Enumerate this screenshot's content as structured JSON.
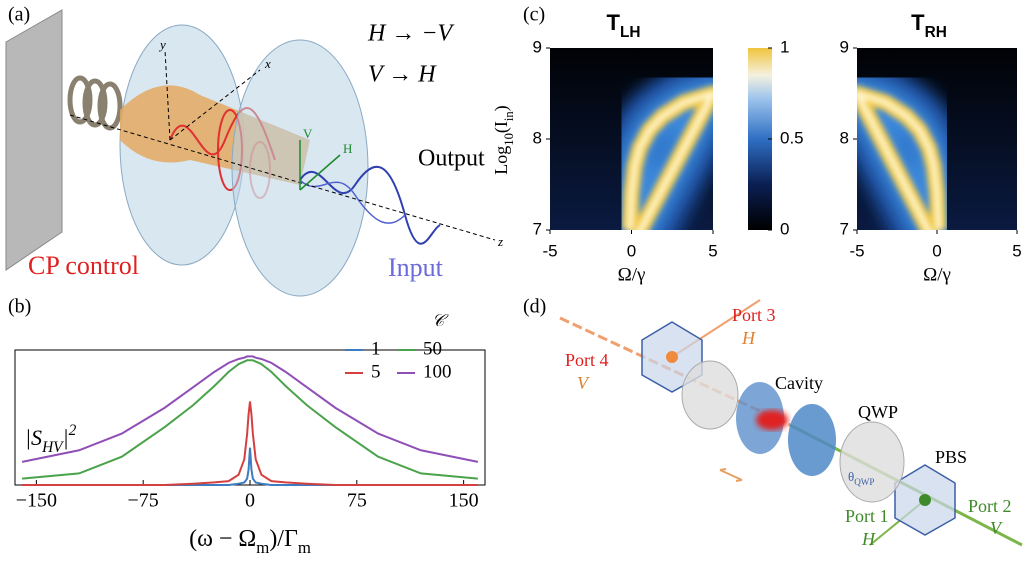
{
  "panel_a": {
    "label": "(a)",
    "rule_1": "H → −V",
    "rule_2": "V → H",
    "output": "Output",
    "control": "CP control",
    "input": "Input",
    "axes": {
      "x": "x",
      "y": "y",
      "z": "z",
      "V": "V",
      "H": "H"
    }
  },
  "panel_b": {
    "label": "(b)"
  },
  "panel_c": {
    "label": "(c)"
  },
  "panel_d": {
    "label": "(d)",
    "port_3": "Port 3",
    "port_3_pol": "H",
    "port_4": "Port 4",
    "port_4_pol": "V",
    "cavity": "Cavity",
    "qwp": "QWP",
    "theta": [
      {
        "text": "θ"
      },
      {
        "text": "QWP",
        "sub": true
      }
    ],
    "pbs": "PBS",
    "port_1": "Port 1",
    "port_1_pol": "H",
    "port_2": "Port 2",
    "port_2_pol": "V"
  },
  "chart_data": [
    {
      "type": "line",
      "xlabel": [
        {
          "text": "(ω − Ω"
        },
        {
          "text": "m",
          "sub": true
        },
        {
          "text": ")/Γ"
        },
        {
          "text": "m",
          "sub": true
        }
      ],
      "ylabel": [
        {
          "text": "|S"
        },
        {
          "text": "HV",
          "sub": true
        },
        {
          "text": "|"
        },
        {
          "text": "2",
          "sup": true
        }
      ],
      "legend_title": "𝒞",
      "x": [
        -160,
        -120,
        -90,
        -60,
        -40,
        -25,
        -15,
        -8,
        -4,
        -2,
        -1,
        0,
        1,
        2,
        4,
        8,
        15,
        25,
        40,
        60,
        90,
        120,
        160
      ],
      "series": [
        {
          "name": "1",
          "color": "#3d7cc0",
          "values": [
            0,
            0,
            0,
            0,
            0,
            0,
            0,
            0.01,
            0.02,
            0.05,
            0.12,
            0.29,
            0.12,
            0.05,
            0.02,
            0.01,
            0,
            0,
            0,
            0,
            0,
            0,
            0
          ]
        },
        {
          "name": "50",
          "color": "#4aa34a",
          "values": [
            0.05,
            0.09,
            0.22,
            0.45,
            0.62,
            0.77,
            0.88,
            0.94,
            0.96,
            0.97,
            0.97,
            0.97,
            0.97,
            0.97,
            0.96,
            0.94,
            0.88,
            0.77,
            0.62,
            0.45,
            0.22,
            0.09,
            0.05
          ]
        },
        {
          "name": "5",
          "color": "#d44040",
          "values": [
            0,
            0,
            0,
            0,
            0.01,
            0.02,
            0.03,
            0.08,
            0.2,
            0.4,
            0.55,
            0.65,
            0.55,
            0.4,
            0.2,
            0.08,
            0.03,
            0.02,
            0.01,
            0,
            0,
            0,
            0
          ]
        },
        {
          "name": "100",
          "color": "#8f4fb6",
          "values": [
            0.18,
            0.27,
            0.4,
            0.6,
            0.76,
            0.88,
            0.95,
            0.98,
            0.99,
            1.0,
            1.0,
            1.0,
            1.0,
            1.0,
            0.99,
            0.98,
            0.95,
            0.88,
            0.76,
            0.6,
            0.4,
            0.27,
            0.18
          ]
        }
      ],
      "xlim": [
        -165,
        165
      ],
      "ylim": [
        0,
        1.05
      ],
      "xticks": [
        {
          "value": -150,
          "label": "−150"
        },
        {
          "value": -75,
          "label": "−75"
        },
        0,
        75,
        150
      ]
    },
    {
      "type": "heatmap",
      "title": [
        {
          "text": "T"
        },
        {
          "text": "LH",
          "sub": true
        }
      ],
      "ylabel": [
        {
          "text": "Log"
        },
        {
          "text": "10",
          "sub": true
        },
        {
          "text": "(I"
        },
        {
          "text": "in",
          "sub": true
        },
        {
          "text": ")"
        }
      ],
      "xlabel": "Ω/γ",
      "ridge": {
        "x": [
          -0.1,
          0,
          0.2,
          0.5,
          1.1,
          1.9,
          3.2,
          5
        ],
        "y": [
          7,
          7.4,
          7.7,
          7.9,
          8.1,
          8.25,
          8.4,
          8.5
        ]
      },
      "xlim": [
        -5,
        5
      ],
      "ylim": [
        7,
        9
      ],
      "xticks": [
        {
          "value": -5,
          "label": "-5"
        },
        0,
        5
      ],
      "yticks": [
        7,
        8,
        9
      ],
      "colorbar": {
        "lim": [
          0,
          1
        ],
        "ticks": [
          0,
          0.5,
          1
        ]
      }
    },
    {
      "type": "heatmap",
      "title": [
        {
          "text": "T"
        },
        {
          "text": "RH",
          "sub": true
        }
      ],
      "xlabel": "Ω/γ",
      "ridge": {
        "x": [
          0.1,
          0,
          -0.2,
          -0.5,
          -1.1,
          -1.9,
          -3.2,
          -5
        ],
        "y": [
          7,
          7.4,
          7.7,
          7.9,
          8.1,
          8.25,
          8.4,
          8.5
        ]
      },
      "xlim": [
        -5,
        5
      ],
      "ylim": [
        7,
        9
      ],
      "xticks": [
        {
          "value": -5,
          "label": "-5"
        },
        0,
        5
      ],
      "yticks": [
        7,
        8,
        9
      ]
    }
  ]
}
